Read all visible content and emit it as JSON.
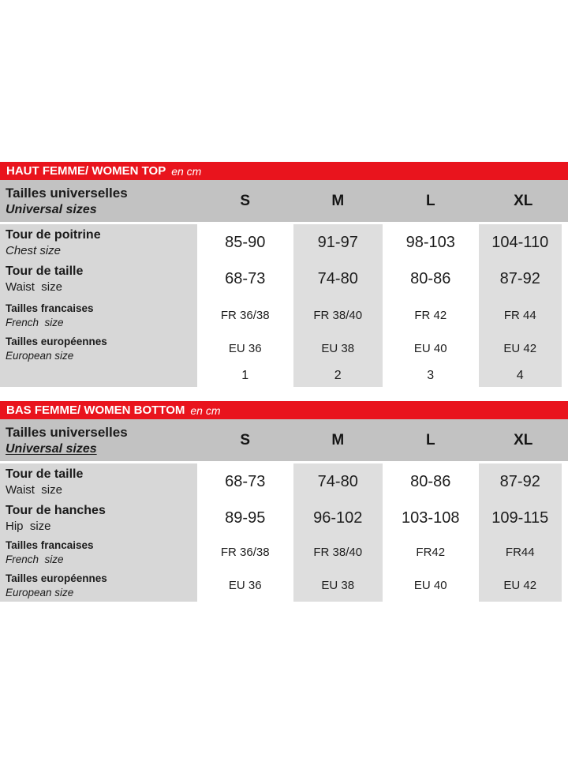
{
  "colors": {
    "banner_red": "#e9141d",
    "banner_text": "#ffffff",
    "header_gray": "#c2c2c2",
    "label_column_gray": "#d7d7d7",
    "cell_gray": "#dedede",
    "text_dark": "#1b1b1b"
  },
  "tables": [
    {
      "title": "HAUT FEMME/ WOMEN TOP",
      "unit": "en cm",
      "header": {
        "label_fr": "Tailles universelles",
        "label_en": "Universal sizes",
        "sizes": [
          "S",
          "M",
          "L",
          "XL"
        ]
      },
      "rows": [
        {
          "label_fr": "Tour de poitrine",
          "label_en": "Chest size",
          "values": [
            "85-90",
            "91-97",
            "98-103",
            "104-110"
          ]
        },
        {
          "label_fr": "Tour de taille",
          "label_en": "Waist  size",
          "values": [
            "68-73",
            "74-80",
            "80-86",
            "87-92"
          ]
        },
        {
          "label_fr": "Tailles francaises",
          "label_en": "French  size",
          "values": [
            "FR 36/38",
            "FR 38/40",
            "FR 42",
            "FR 44"
          ]
        },
        {
          "label_fr": "Tailles européennes",
          "label_en": "European size",
          "values": [
            "EU 36",
            "EU 38",
            "EU 40",
            "EU 42"
          ]
        },
        {
          "label_fr": "",
          "label_en": "",
          "values": [
            "1",
            "2",
            "3",
            "4"
          ]
        }
      ]
    },
    {
      "title": "BAS FEMME/ WOMEN BOTTOM",
      "unit": "en cm",
      "header": {
        "label_fr": "Tailles universelles",
        "label_en": "Universal sizes",
        "sizes": [
          "S",
          "M",
          "L",
          "XL"
        ]
      },
      "rows": [
        {
          "label_fr": "Tour de taille",
          "label_en": "Waist  size",
          "values": [
            "68-73",
            "74-80",
            "80-86",
            "87-92"
          ]
        },
        {
          "label_fr": "Tour de hanches",
          "label_en": "Hip  size",
          "values": [
            "89-95",
            "96-102",
            "103-108",
            "109-115"
          ]
        },
        {
          "label_fr": "Tailles francaises",
          "label_en": "French  size",
          "values": [
            "FR 36/38",
            "FR 38/40",
            "FR42",
            "FR44"
          ]
        },
        {
          "label_fr": "Tailles européennes",
          "label_en": "European size",
          "values": [
            "EU 36",
            "EU 38",
            "EU 40",
            "EU 42"
          ]
        }
      ]
    }
  ]
}
